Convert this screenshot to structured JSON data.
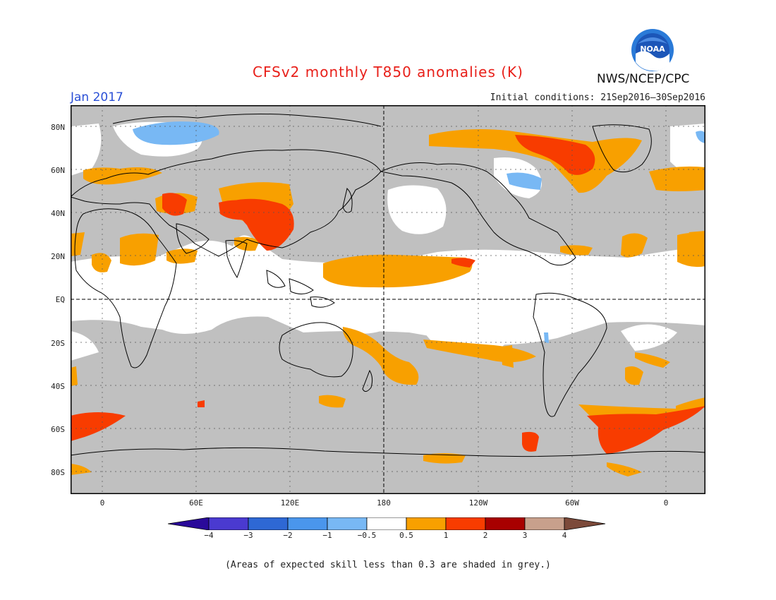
{
  "header": {
    "title": "CFSv2 monthly T850 anomalies (K)",
    "month": "Jan 2017",
    "initial_conditions": "Initial conditions: 21Sep2016–30Sep2016",
    "agency": "NWS/NCEP/CPC",
    "logo_text": "NOAA",
    "logo_icon": "noaa-logo"
  },
  "axes": {
    "lat_labels": [
      "80N",
      "60N",
      "40N",
      "20N",
      "EQ",
      "20S",
      "40S",
      "60S",
      "80S"
    ],
    "lon_labels": [
      "0",
      "60E",
      "120E",
      "180",
      "120W",
      "60W",
      "0"
    ]
  },
  "colorbar": {
    "labels": [
      "−4",
      "−3",
      "−2",
      "−1",
      "−0.5",
      "0.5",
      "1",
      "2",
      "3",
      "4"
    ],
    "colors": [
      "#2a0a9a",
      "#4a3ad0",
      "#2e68d4",
      "#4a96ec",
      "#78b8f4",
      "#ffffff",
      "#f8a000",
      "#f83c00",
      "#a80000",
      "#c8a08c",
      "#7c4a3a"
    ]
  },
  "colors": {
    "low_skill_grey": "#c0c0c0",
    "title_red": "#e8201a",
    "month_blue": "#2a4fd6"
  },
  "footnote": "(Areas of expected skill less than 0.3 are shaded in grey.)"
}
